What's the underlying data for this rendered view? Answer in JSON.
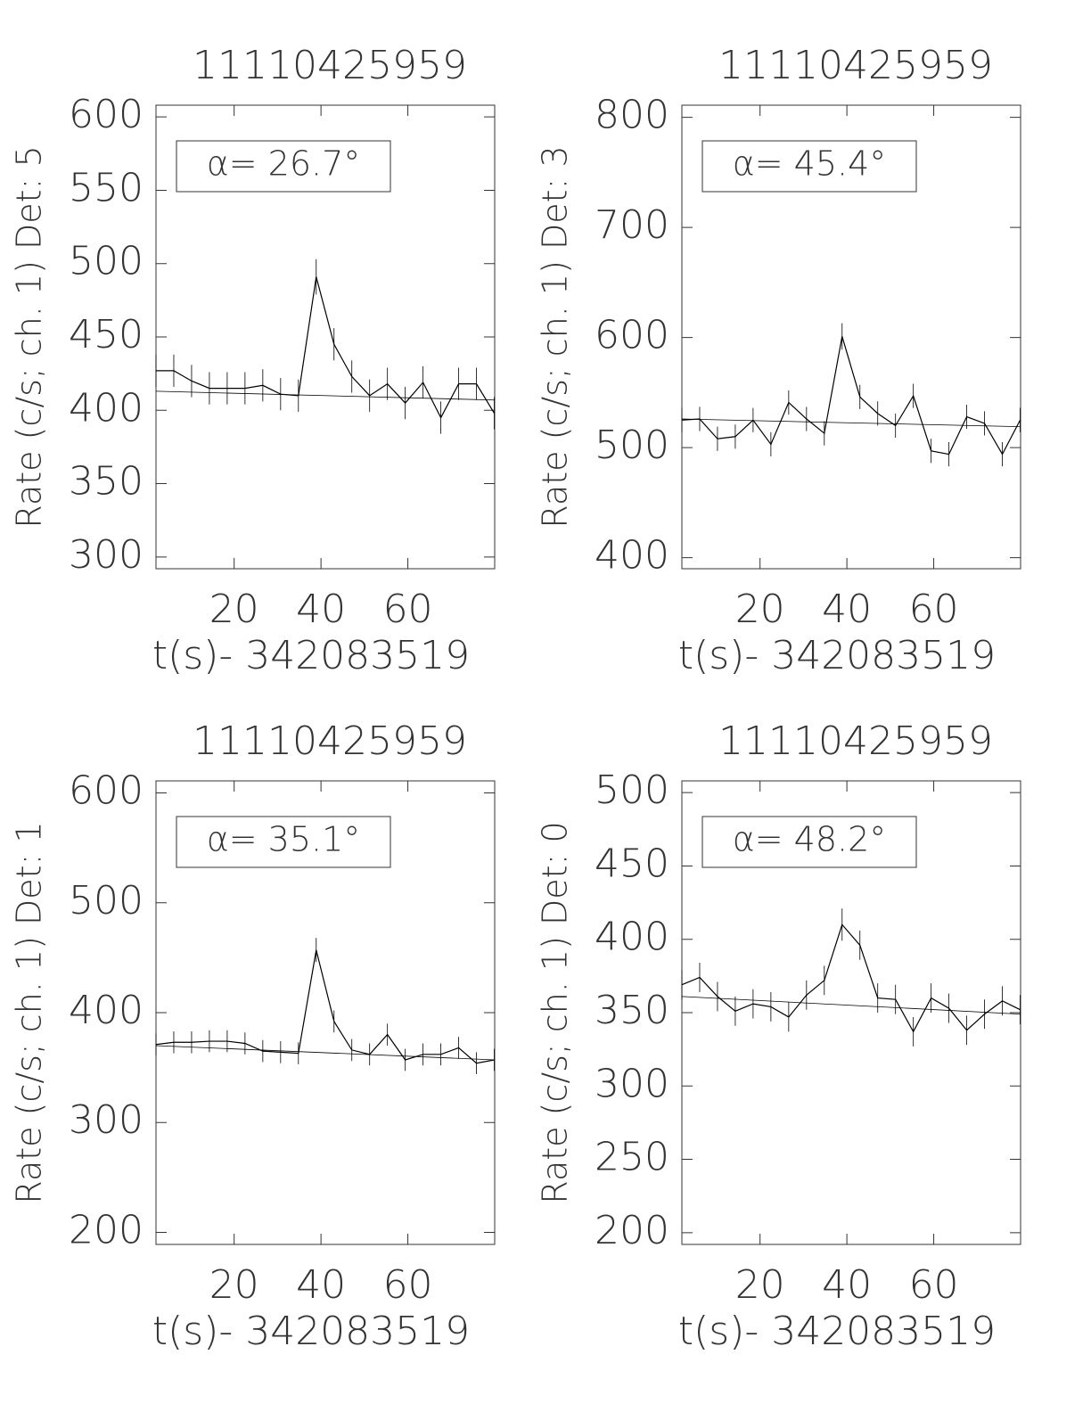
{
  "chart_data": [
    {
      "type": "line",
      "title": "11110425959",
      "xlabel": "t(s)- 342083519",
      "ylabel": "Rate (c/s; ch. 1) Det: 5",
      "annotation": "α= 26.7°",
      "color": "#000000",
      "x": [
        2,
        6.1,
        10.2,
        14.3,
        18.4,
        22.5,
        26.6,
        30.7,
        34.8,
        38.9,
        43,
        47.1,
        51.2,
        55.3,
        59.4,
        63.5,
        67.6,
        71.7,
        75.8,
        79.9
      ],
      "values": [
        427,
        427,
        420,
        415,
        415,
        415,
        417,
        411,
        410,
        491,
        445,
        423,
        410,
        418,
        405,
        419,
        395,
        418,
        418,
        398
      ],
      "errors": [
        11,
        11,
        11,
        11,
        11,
        11,
        11,
        11,
        11,
        12,
        11,
        11,
        11,
        11,
        11,
        11,
        11,
        11,
        11,
        11
      ],
      "fit_x": [
        2,
        80
      ],
      "fit_values": [
        413,
        407
      ],
      "xlim": [
        2,
        80
      ],
      "ylim": [
        292,
        608
      ],
      "xticks": [
        20,
        40,
        60
      ],
      "yticks": [
        300,
        350,
        400,
        450,
        500,
        550,
        600
      ]
    },
    {
      "type": "line",
      "title": "11110425959",
      "xlabel": "t(s)- 342083519",
      "ylabel": "Rate (c/s; ch. 1) Det: 3",
      "annotation": "α= 45.4°",
      "color": "#000000",
      "x": [
        2,
        6.1,
        10.2,
        14.3,
        18.4,
        22.5,
        26.6,
        30.7,
        34.8,
        38.9,
        43,
        47.1,
        51.2,
        55.3,
        59.4,
        63.5,
        67.6,
        71.7,
        75.8,
        79.9
      ],
      "values": [
        525,
        526,
        508,
        510,
        525,
        503,
        541,
        526,
        513,
        601,
        546,
        531,
        520,
        547,
        497,
        494,
        528,
        522,
        494,
        525
      ],
      "errors": [
        11,
        11,
        11,
        11,
        11,
        11,
        11,
        11,
        11,
        12,
        11,
        11,
        11,
        11,
        11,
        11,
        11,
        11,
        11,
        11
      ],
      "fit_x": [
        2,
        80
      ],
      "fit_values": [
        526,
        519
      ],
      "xlim": [
        2,
        80
      ],
      "ylim": [
        390,
        811
      ],
      "xticks": [
        20,
        40,
        60
      ],
      "yticks": [
        400,
        500,
        600,
        700,
        800
      ]
    },
    {
      "type": "line",
      "title": "11110425959",
      "xlabel": "t(s)- 342083519",
      "ylabel": "Rate (c/s; ch. 1) Det: 1",
      "annotation": "α= 35.1°",
      "color": "#000000",
      "x": [
        2,
        6.1,
        10.2,
        14.3,
        18.4,
        22.5,
        26.6,
        30.7,
        34.8,
        38.9,
        43,
        47.1,
        51.2,
        55.3,
        59.4,
        63.5,
        67.6,
        71.7,
        75.8,
        79.9
      ],
      "values": [
        371,
        373,
        373,
        374,
        374,
        372,
        365,
        364,
        363,
        457,
        392,
        366,
        362,
        380,
        357,
        362,
        362,
        368,
        354,
        357
      ],
      "errors": [
        10,
        10,
        10,
        10,
        10,
        10,
        10,
        10,
        10,
        11,
        10,
        10,
        10,
        10,
        10,
        10,
        10,
        10,
        10,
        10
      ],
      "fit_x": [
        2,
        80
      ],
      "fit_values": [
        370,
        357
      ],
      "xlim": [
        2,
        80
      ],
      "ylim": [
        189,
        611
      ],
      "xticks": [
        20,
        40,
        60
      ],
      "yticks": [
        200,
        300,
        400,
        500,
        600
      ]
    },
    {
      "type": "line",
      "title": "11110425959",
      "xlabel": "t(s)- 342083519",
      "ylabel": "Rate (c/s; ch. 1) Det: 0",
      "annotation": "α= 48.2°",
      "color": "#000000",
      "x": [
        2,
        6.1,
        10.2,
        14.3,
        18.4,
        22.5,
        26.6,
        30.7,
        34.8,
        38.9,
        43,
        47.1,
        51.2,
        55.3,
        59.4,
        63.5,
        67.6,
        71.7,
        75.8,
        79.9
      ],
      "values": [
        369,
        374,
        361,
        351,
        356,
        354,
        347,
        362,
        372,
        410,
        396,
        360,
        359,
        337,
        360,
        353,
        338,
        349,
        358,
        352
      ],
      "errors": [
        10,
        10,
        10,
        10,
        10,
        10,
        10,
        10,
        10,
        11,
        10,
        10,
        10,
        10,
        10,
        10,
        10,
        10,
        10,
        10
      ],
      "fit_x": [
        2,
        80
      ],
      "fit_values": [
        361,
        349
      ],
      "xlim": [
        2,
        80
      ],
      "ylim": [
        192,
        508
      ],
      "xticks": [
        20,
        40,
        60
      ],
      "yticks": [
        200,
        250,
        300,
        350,
        400,
        450,
        500
      ]
    }
  ]
}
